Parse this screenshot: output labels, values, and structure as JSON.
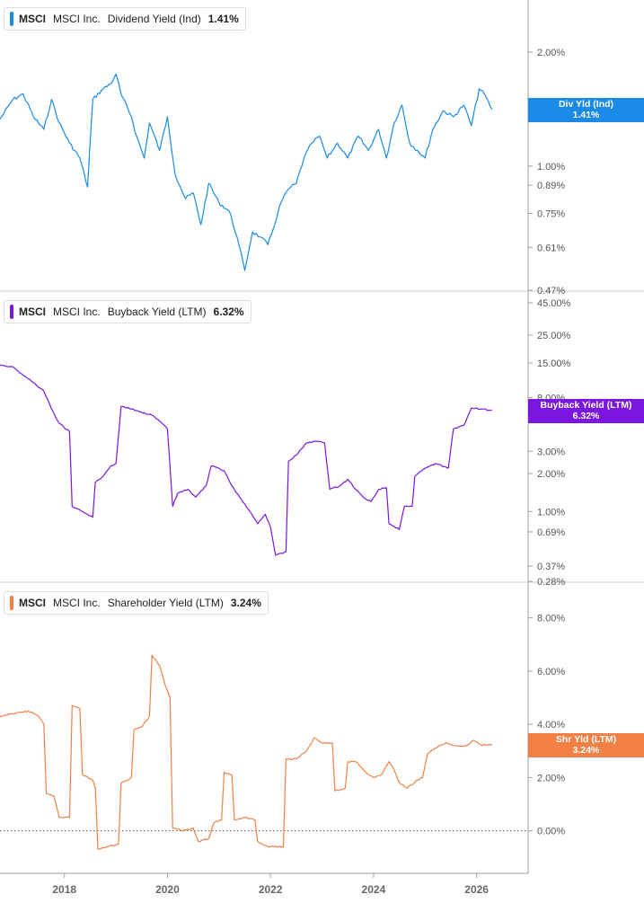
{
  "chart_data": {
    "type": "line",
    "x_axis": {
      "ticks": [
        "2018",
        "2020",
        "2022",
        "2024",
        "2026"
      ],
      "range": [
        2016.75,
        2027.0
      ]
    },
    "panels": [
      {
        "ticker": "MSCI",
        "company": "MSCI Inc.",
        "metric": "Dividend Yield (Ind)",
        "value_label": "1.41%",
        "tag_title": "Div Yld (Ind)",
        "tag_value": "1.41%",
        "color": "#1a8ae6",
        "scale": "log",
        "ylim": [
          0.47,
          2.6
        ],
        "ticks": [
          {
            "v": 2.0,
            "label": "2.00%"
          },
          {
            "v": 1.0,
            "label": "1.00%"
          },
          {
            "v": 0.89,
            "label": "0.89%"
          },
          {
            "v": 0.75,
            "label": "0.75%"
          },
          {
            "v": 0.61,
            "label": "0.61%"
          },
          {
            "v": 0.47,
            "label": "0.47%"
          }
        ],
        "zero_line": false,
        "series": [
          [
            2016.75,
            1.33
          ],
          [
            2017.0,
            1.5
          ],
          [
            2017.2,
            1.55
          ],
          [
            2017.4,
            1.35
          ],
          [
            2017.6,
            1.25
          ],
          [
            2017.75,
            1.5
          ],
          [
            2017.9,
            1.3
          ],
          [
            2018.1,
            1.15
          ],
          [
            2018.3,
            1.05
          ],
          [
            2018.45,
            0.88
          ],
          [
            2018.55,
            1.5
          ],
          [
            2018.75,
            1.6
          ],
          [
            2018.9,
            1.65
          ],
          [
            2019.0,
            1.75
          ],
          [
            2019.1,
            1.55
          ],
          [
            2019.3,
            1.35
          ],
          [
            2019.4,
            1.2
          ],
          [
            2019.55,
            1.05
          ],
          [
            2019.65,
            1.3
          ],
          [
            2019.85,
            1.1
          ],
          [
            2020.0,
            1.35
          ],
          [
            2020.15,
            0.95
          ],
          [
            2020.25,
            0.88
          ],
          [
            2020.35,
            0.82
          ],
          [
            2020.5,
            0.85
          ],
          [
            2020.65,
            0.7
          ],
          [
            2020.8,
            0.9
          ],
          [
            2021.0,
            0.8
          ],
          [
            2021.2,
            0.76
          ],
          [
            2021.35,
            0.65
          ],
          [
            2021.5,
            0.53
          ],
          [
            2021.65,
            0.67
          ],
          [
            2021.8,
            0.65
          ],
          [
            2021.95,
            0.62
          ],
          [
            2022.05,
            0.68
          ],
          [
            2022.2,
            0.8
          ],
          [
            2022.35,
            0.87
          ],
          [
            2022.5,
            0.9
          ],
          [
            2022.65,
            1.05
          ],
          [
            2022.8,
            1.15
          ],
          [
            2022.95,
            1.2
          ],
          [
            2023.1,
            1.05
          ],
          [
            2023.3,
            1.15
          ],
          [
            2023.5,
            1.05
          ],
          [
            2023.7,
            1.2
          ],
          [
            2023.9,
            1.1
          ],
          [
            2024.1,
            1.25
          ],
          [
            2024.25,
            1.05
          ],
          [
            2024.4,
            1.3
          ],
          [
            2024.55,
            1.45
          ],
          [
            2024.7,
            1.15
          ],
          [
            2024.85,
            1.1
          ],
          [
            2025.0,
            1.05
          ],
          [
            2025.15,
            1.25
          ],
          [
            2025.35,
            1.4
          ],
          [
            2025.55,
            1.35
          ],
          [
            2025.75,
            1.45
          ],
          [
            2025.9,
            1.28
          ],
          [
            2026.05,
            1.6
          ],
          [
            2026.15,
            1.55
          ],
          [
            2026.3,
            1.41
          ]
        ]
      },
      {
        "ticker": "MSCI",
        "company": "MSCI Inc.",
        "metric": "Buyback Yield (LTM)",
        "value_label": "6.32%",
        "tag_title": "Buyback Yield (LTM)",
        "tag_value": "6.32%",
        "color": "#7a16e0",
        "scale": "log",
        "ylim": [
          0.28,
          45.0
        ],
        "ticks": [
          {
            "v": 45.0,
            "label": "45.00%"
          },
          {
            "v": 25.0,
            "label": "25.00%"
          },
          {
            "v": 15.0,
            "label": "15.00%"
          },
          {
            "v": 8.0,
            "label": "8.00%"
          },
          {
            "v": 3.0,
            "label": "3.00%"
          },
          {
            "v": 2.0,
            "label": "2.00%"
          },
          {
            "v": 1.0,
            "label": "1.00%"
          },
          {
            "v": 0.69,
            "label": "0.69%"
          },
          {
            "v": 0.37,
            "label": "0.37%"
          },
          {
            "v": 0.28,
            "label": "0.28%"
          }
        ],
        "zero_line": false,
        "series": [
          [
            2016.75,
            14.5
          ],
          [
            2017.0,
            14.0
          ],
          [
            2017.2,
            12.0
          ],
          [
            2017.4,
            10.5
          ],
          [
            2017.6,
            9.0
          ],
          [
            2017.75,
            6.5
          ],
          [
            2017.9,
            5.0
          ],
          [
            2018.1,
            4.3
          ],
          [
            2018.15,
            1.1
          ],
          [
            2018.35,
            1.0
          ],
          [
            2018.55,
            0.9
          ],
          [
            2018.6,
            1.7
          ],
          [
            2018.75,
            1.9
          ],
          [
            2018.9,
            2.3
          ],
          [
            2019.0,
            2.4
          ],
          [
            2019.1,
            6.8
          ],
          [
            2019.3,
            6.5
          ],
          [
            2019.45,
            6.2
          ],
          [
            2019.7,
            5.8
          ],
          [
            2019.85,
            5.2
          ],
          [
            2020.0,
            4.5
          ],
          [
            2020.1,
            1.1
          ],
          [
            2020.2,
            1.4
          ],
          [
            2020.4,
            1.5
          ],
          [
            2020.55,
            1.3
          ],
          [
            2020.75,
            1.6
          ],
          [
            2020.85,
            2.3
          ],
          [
            2021.1,
            2.1
          ],
          [
            2021.25,
            1.6
          ],
          [
            2021.4,
            1.3
          ],
          [
            2021.6,
            1.0
          ],
          [
            2021.75,
            0.8
          ],
          [
            2021.9,
            0.95
          ],
          [
            2022.0,
            0.75
          ],
          [
            2022.1,
            0.45
          ],
          [
            2022.3,
            0.48
          ],
          [
            2022.35,
            2.5
          ],
          [
            2022.5,
            2.8
          ],
          [
            2022.7,
            3.5
          ],
          [
            2022.9,
            3.6
          ],
          [
            2023.05,
            3.5
          ],
          [
            2023.15,
            1.5
          ],
          [
            2023.35,
            1.6
          ],
          [
            2023.5,
            1.8
          ],
          [
            2023.65,
            1.5
          ],
          [
            2023.8,
            1.3
          ],
          [
            2023.95,
            1.2
          ],
          [
            2024.1,
            1.5
          ],
          [
            2024.25,
            1.55
          ],
          [
            2024.3,
            0.8
          ],
          [
            2024.5,
            0.72
          ],
          [
            2024.6,
            1.1
          ],
          [
            2024.75,
            1.1
          ],
          [
            2024.8,
            1.9
          ],
          [
            2025.0,
            2.2
          ],
          [
            2025.2,
            2.4
          ],
          [
            2025.45,
            2.2
          ],
          [
            2025.55,
            4.5
          ],
          [
            2025.75,
            4.8
          ],
          [
            2025.9,
            6.6
          ],
          [
            2026.1,
            6.5
          ],
          [
            2026.3,
            6.32
          ]
        ]
      },
      {
        "ticker": "MSCI",
        "company": "MSCI Inc.",
        "metric": "Shareholder Yield (LTM)",
        "value_label": "3.24%",
        "tag_title": "Shr Yld (LTM)",
        "tag_value": "3.24%",
        "color": "#f28044",
        "scale": "linear",
        "ylim": [
          -1.6,
          8.9
        ],
        "ticks": [
          {
            "v": 8.0,
            "label": "8.00%"
          },
          {
            "v": 6.0,
            "label": "6.00%"
          },
          {
            "v": 4.0,
            "label": "4.00%"
          },
          {
            "v": 2.0,
            "label": "2.00%"
          },
          {
            "v": 0.0,
            "label": "0.00%"
          }
        ],
        "zero_line": true,
        "series": [
          [
            2016.75,
            4.3
          ],
          [
            2017.0,
            4.4
          ],
          [
            2017.3,
            4.5
          ],
          [
            2017.5,
            4.3
          ],
          [
            2017.6,
            4.0
          ],
          [
            2017.65,
            1.4
          ],
          [
            2017.8,
            1.3
          ],
          [
            2017.9,
            0.5
          ],
          [
            2018.1,
            0.5
          ],
          [
            2018.15,
            4.7
          ],
          [
            2018.3,
            4.6
          ],
          [
            2018.35,
            2.1
          ],
          [
            2018.55,
            1.9
          ],
          [
            2018.6,
            1.6
          ],
          [
            2018.65,
            -0.7
          ],
          [
            2018.85,
            -0.6
          ],
          [
            2019.05,
            -0.5
          ],
          [
            2019.1,
            1.8
          ],
          [
            2019.3,
            2.0
          ],
          [
            2019.35,
            3.8
          ],
          [
            2019.5,
            3.9
          ],
          [
            2019.65,
            4.3
          ],
          [
            2019.7,
            6.6
          ],
          [
            2019.85,
            6.2
          ],
          [
            2019.95,
            5.5
          ],
          [
            2020.05,
            5.0
          ],
          [
            2020.1,
            0.1
          ],
          [
            2020.3,
            0.0
          ],
          [
            2020.5,
            0.1
          ],
          [
            2020.6,
            -0.4
          ],
          [
            2020.8,
            -0.3
          ],
          [
            2020.9,
            0.3
          ],
          [
            2021.05,
            0.4
          ],
          [
            2021.1,
            2.2
          ],
          [
            2021.25,
            2.1
          ],
          [
            2021.3,
            0.4
          ],
          [
            2021.5,
            0.5
          ],
          [
            2021.7,
            0.4
          ],
          [
            2021.75,
            -0.4
          ],
          [
            2021.95,
            -0.6
          ],
          [
            2022.25,
            -0.6
          ],
          [
            2022.3,
            2.7
          ],
          [
            2022.5,
            2.7
          ],
          [
            2022.7,
            3.0
          ],
          [
            2022.85,
            3.5
          ],
          [
            2023.0,
            3.3
          ],
          [
            2023.2,
            3.3
          ],
          [
            2023.25,
            1.5
          ],
          [
            2023.45,
            1.6
          ],
          [
            2023.5,
            2.6
          ],
          [
            2023.65,
            2.6
          ],
          [
            2023.85,
            2.2
          ],
          [
            2024.0,
            2.0
          ],
          [
            2024.15,
            2.1
          ],
          [
            2024.3,
            2.6
          ],
          [
            2024.4,
            2.3
          ],
          [
            2024.5,
            1.8
          ],
          [
            2024.65,
            1.6
          ],
          [
            2024.85,
            1.9
          ],
          [
            2024.95,
            2.0
          ],
          [
            2025.05,
            2.9
          ],
          [
            2025.2,
            3.1
          ],
          [
            2025.4,
            3.3
          ],
          [
            2025.6,
            3.2
          ],
          [
            2025.8,
            3.2
          ],
          [
            2025.95,
            3.4
          ],
          [
            2026.1,
            3.2
          ],
          [
            2026.3,
            3.24
          ]
        ]
      }
    ]
  }
}
